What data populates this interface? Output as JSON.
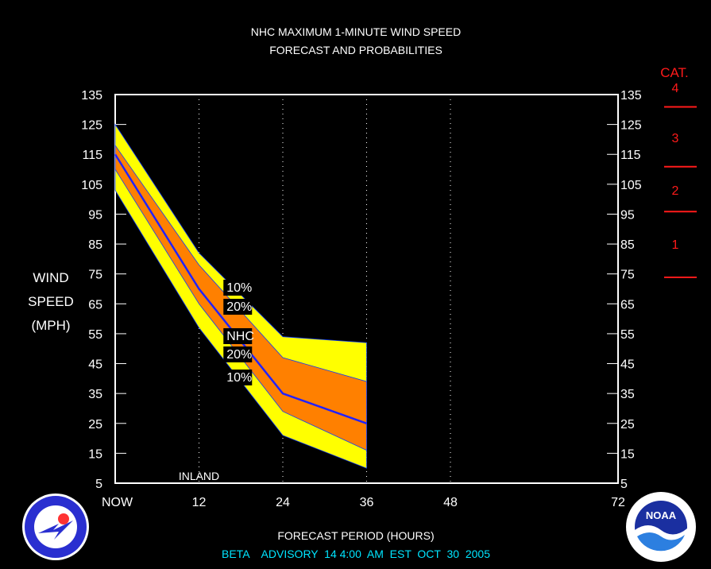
{
  "header": {
    "title_line1": "NHC MAXIMUM 1-MINUTE WIND SPEED",
    "title_line2": "FORECAST AND PROBABILITIES"
  },
  "footer": {
    "advisory": "BETA    ADVISORY  14 4:00  AM  EST  OCT  30  2005"
  },
  "colors": {
    "outer_band": "#ffff00",
    "inner_band": "#ff8000",
    "forecast_line": "#2222ff",
    "category": "#ff1a1a",
    "footer_text": "#00e5ff"
  },
  "logos": {
    "left": "nws-logo",
    "right": "noaa-logo"
  },
  "chart_data": {
    "type": "area",
    "title": "NHC MAXIMUM 1-MINUTE WIND SPEED FORECAST AND PROBABILITIES",
    "xlabel": "FORECAST PERIOD (HOURS)",
    "ylabel_lines": [
      "WIND",
      "SPEED",
      "(MPH)"
    ],
    "x_ticks": [
      {
        "x": 0,
        "label": "NOW"
      },
      {
        "x": 12,
        "label": "12"
      },
      {
        "x": 24,
        "label": "24"
      },
      {
        "x": 36,
        "label": "36"
      },
      {
        "x": 48,
        "label": "48"
      },
      {
        "x": 72,
        "label": "72"
      }
    ],
    "xlim": [
      0,
      72
    ],
    "ylim": [
      5,
      135
    ],
    "y_ticks": [
      5,
      15,
      25,
      35,
      45,
      55,
      65,
      75,
      85,
      95,
      105,
      115,
      125,
      135
    ],
    "vertical_gridlines": [
      12,
      24,
      36,
      48
    ],
    "x": [
      0,
      12,
      24,
      36
    ],
    "series": [
      {
        "name": "10%",
        "band": "upper_outer",
        "values": [
          125,
          82,
          54,
          52
        ]
      },
      {
        "name": "20%",
        "band": "upper_inner",
        "values": [
          118,
          78,
          47,
          39
        ]
      },
      {
        "name": "NHC",
        "band": "forecast",
        "values": [
          115,
          70,
          35,
          25
        ]
      },
      {
        "name": "20%",
        "band": "lower_inner",
        "values": [
          110,
          65,
          29,
          16
        ]
      },
      {
        "name": "10%",
        "band": "lower_outer",
        "values": [
          103,
          57,
          21,
          10
        ]
      }
    ],
    "band_labels": [
      "10%",
      "20%",
      "NHC",
      "20%",
      "10%"
    ],
    "annotation": {
      "text": "INLAND",
      "x": 12
    },
    "category_scale": {
      "title": "CAT.",
      "thresholds": [
        74,
        96,
        111,
        131
      ],
      "labels": [
        "1",
        "2",
        "3",
        "4"
      ]
    }
  }
}
